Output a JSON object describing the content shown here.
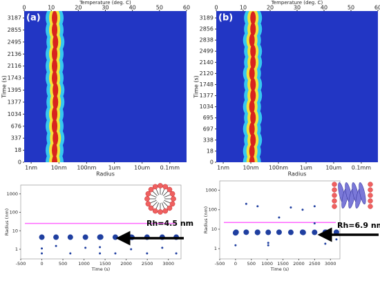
{
  "chart_data": [
    {
      "type": "heatmap",
      "panel_label": "(a)",
      "x2label": "Temperature (deg. C)",
      "xlabel": "Radius",
      "ylabel": "Time (s)",
      "log_x": true,
      "xlim": [
        0.56,
        400000
      ],
      "xticks": [
        {
          "value": 1,
          "label": "1nm"
        },
        {
          "value": 10,
          "label": "10nm"
        },
        {
          "value": 100,
          "label": "100nm"
        },
        {
          "value": 1000,
          "label": "1um"
        },
        {
          "value": 10000,
          "label": "10um"
        },
        {
          "value": 100000,
          "label": "0.1mm"
        }
      ],
      "x2lim": [
        0,
        60
      ],
      "x2ticks": [
        0,
        10,
        20,
        30,
        40,
        50,
        60
      ],
      "categories": [
        "0",
        "18",
        "337",
        "676",
        "1034",
        "1377",
        "1395",
        "1743",
        "2116",
        "2136",
        "2495",
        "2855",
        "3187"
      ],
      "values": [
        7,
        7,
        7.5,
        7,
        7,
        7.5,
        7.5,
        7,
        7,
        7,
        7.5,
        7,
        7
      ],
      "colors": [
        "#2236c4",
        "#35c8f0",
        "#f2e33a",
        "#d8231e"
      ]
    },
    {
      "type": "heatmap",
      "panel_label": "(b)",
      "x2label": "Temperature (deg. C)",
      "xlabel": "Radius",
      "ylabel": "Time (s)",
      "log_x": true,
      "xlim": [
        0.56,
        400000
      ],
      "xticks": [
        {
          "value": 1,
          "label": "1nm"
        },
        {
          "value": 10,
          "label": "10nm"
        },
        {
          "value": 100,
          "label": "100nm"
        },
        {
          "value": 1000,
          "label": "1um"
        },
        {
          "value": 10000,
          "label": "10um"
        },
        {
          "value": 100000,
          "label": "0.1mm"
        }
      ],
      "x2lim": [
        0,
        60
      ],
      "x2ticks": [
        0,
        10,
        20,
        30,
        40,
        50,
        60
      ],
      "categories": [
        "0",
        "18",
        "338",
        "697",
        "695",
        "1034",
        "1377",
        "1748",
        "2120",
        "2140",
        "2499",
        "2838",
        "2856",
        "3189"
      ],
      "values": [
        11,
        11,
        12,
        11,
        12,
        11,
        12,
        12,
        11,
        12,
        12,
        11,
        12,
        12
      ],
      "colors": [
        "#2236c4",
        "#35c8f0",
        "#f2e33a",
        "#d8231e"
      ]
    },
    {
      "type": "scatter",
      "xlabel": "Time (s)",
      "ylabel": "Radius (nm)",
      "log_y": true,
      "xlim": [
        -500,
        3300
      ],
      "xticks": [
        -500,
        0,
        500,
        1000,
        1500,
        2000,
        2500,
        3000
      ],
      "ylim": [
        0.3,
        3000
      ],
      "yticks": [
        1,
        10,
        100,
        1000
      ],
      "reference_line": 25,
      "reference_color": "#ff66ff",
      "annotation": "Rh=4.5 nm",
      "series": [
        {
          "color": "#1f3fa0",
          "marker_size": 4,
          "x": [
            0,
            337,
            676,
            1034,
            1377,
            1395,
            1743,
            2116,
            2136,
            2495,
            2855,
            3187
          ],
          "values": [
            4.5,
            4.5,
            4.5,
            4.5,
            4.5,
            4.6,
            4.5,
            4.5,
            4.4,
            4.5,
            4.5,
            4.5
          ]
        },
        {
          "color": "#1f3fa0",
          "marker_size": 1.5,
          "x": [
            0,
            337,
            1034,
            1377,
            1743,
            2116,
            2495,
            2855,
            3187,
            0,
            676,
            1377
          ],
          "values": [
            1.1,
            1.5,
            1.2,
            1.3,
            0.6,
            1.0,
            0.6,
            1.2,
            0.6,
            0.6,
            0.6,
            0.6
          ]
        }
      ]
    },
    {
      "type": "scatter",
      "xlabel": "Time (s)",
      "ylabel": "Radius (nm)",
      "log_y": true,
      "xlim": [
        -500,
        3300
      ],
      "xticks": [
        -500,
        0,
        500,
        1000,
        1500,
        2000,
        2500,
        3000
      ],
      "ylim": [
        0.3,
        3000
      ],
      "yticks": [
        1,
        10,
        100,
        1000
      ],
      "reference_line": 22,
      "reference_color": "#ff66ff",
      "annotation": "Rh=6.9 nm",
      "series": [
        {
          "color": "#1f3fa0",
          "marker_size": 4,
          "x": [
            0,
            18,
            338,
            695,
            697,
            1034,
            1377,
            1748,
            2120,
            2140,
            2499,
            2838,
            2856,
            3189
          ],
          "values": [
            6.5,
            7,
            7,
            6.8,
            7,
            6.9,
            7,
            6.9,
            7,
            6.8,
            6.9,
            7,
            6.9,
            7
          ]
        },
        {
          "color": "#1f3fa0",
          "marker_size": 1.5,
          "x": [
            0,
            338,
            697,
            1034,
            1377,
            1748,
            2120,
            2499,
            2838,
            3189,
            1034,
            2499
          ],
          "values": [
            1.5,
            200,
            150,
            2,
            40,
            130,
            100,
            150,
            1.8,
            3,
            1.5,
            20
          ]
        }
      ]
    }
  ]
}
